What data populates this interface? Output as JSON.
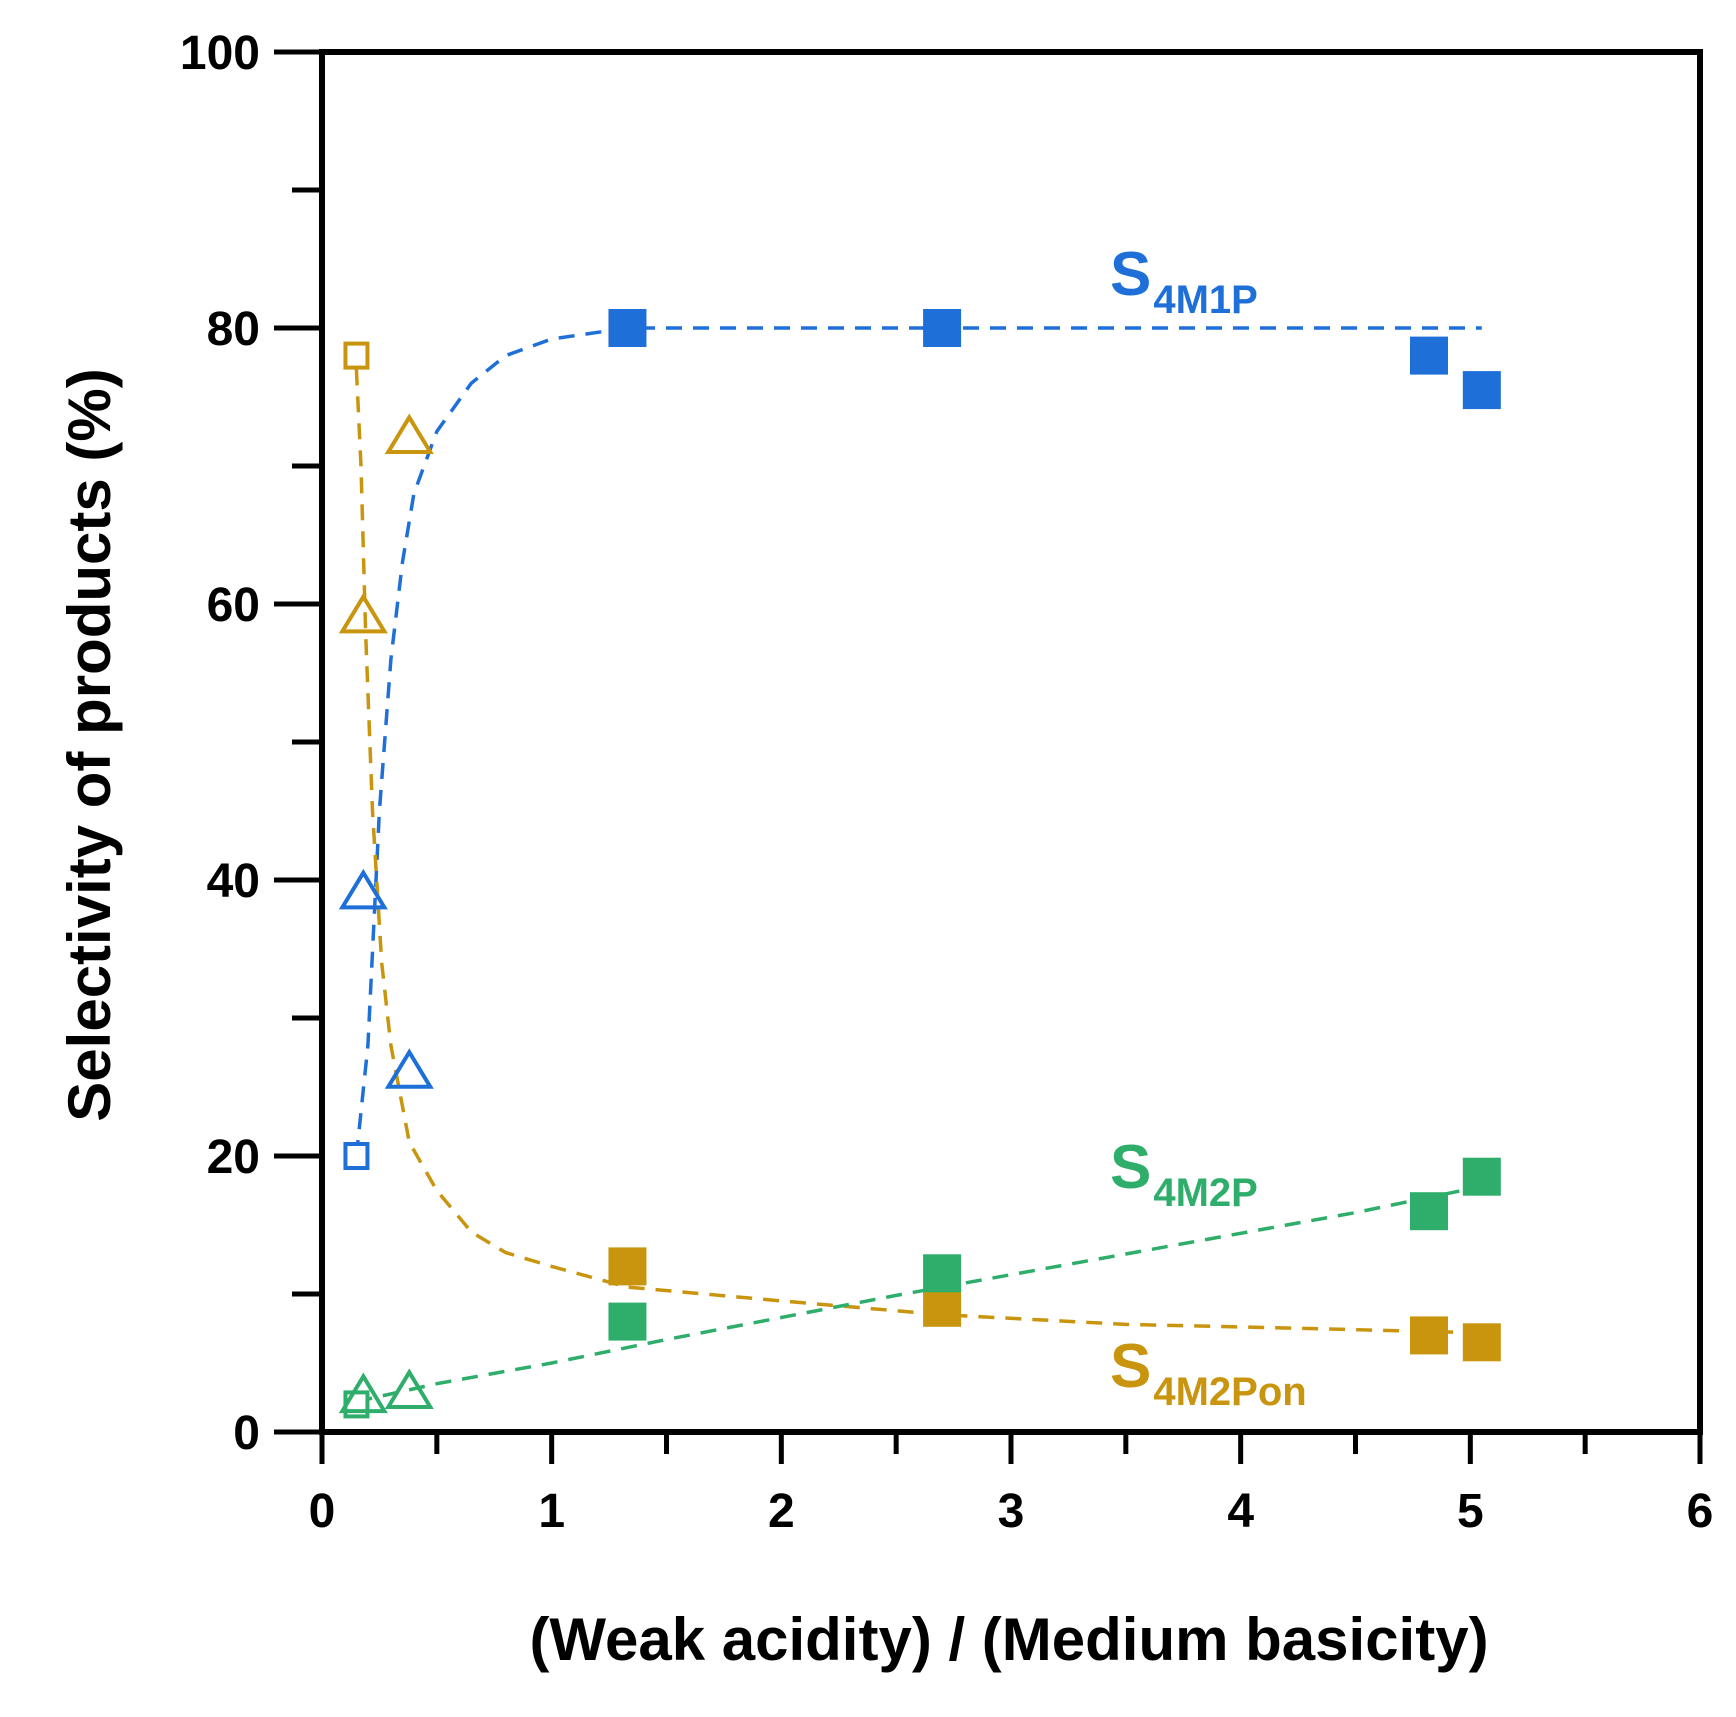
{
  "chart_data": {
    "type": "scatter",
    "title": "",
    "xlabel": "(Weak acidity) / (Medium basicity)",
    "ylabel": "Selectivity of products (%)",
    "xlim": [
      0,
      6
    ],
    "ylim": [
      0,
      100
    ],
    "x_ticks": [
      0,
      1,
      2,
      3,
      4,
      5,
      6
    ],
    "y_ticks": [
      0,
      20,
      40,
      60,
      80,
      100
    ],
    "x_tick_labels": [
      "0",
      "1",
      "2",
      "3",
      "4",
      "5",
      "6"
    ],
    "y_tick_labels": [
      "0",
      "20",
      "40",
      "60",
      "80",
      "100"
    ],
    "grid": false,
    "legend": "none",
    "series": [
      {
        "key": "s4m1p",
        "label_main": "S",
        "label_sub": "4M1P",
        "color": "#1f6fd8",
        "points": [
          {
            "x": 0.15,
            "y": 20,
            "marker": "square-open-small"
          },
          {
            "x": 0.18,
            "y": 39,
            "marker": "triangle-open"
          },
          {
            "x": 0.38,
            "y": 26,
            "marker": "triangle-open"
          },
          {
            "x": 1.33,
            "y": 80,
            "marker": "square-filled"
          },
          {
            "x": 2.7,
            "y": 80,
            "marker": "square-filled"
          },
          {
            "x": 4.82,
            "y": 78,
            "marker": "square-filled"
          },
          {
            "x": 5.05,
            "y": 75.5,
            "marker": "square-filled"
          }
        ],
        "trend": [
          [
            0.15,
            20
          ],
          [
            0.2,
            28
          ],
          [
            0.25,
            45
          ],
          [
            0.3,
            56
          ],
          [
            0.35,
            63
          ],
          [
            0.4,
            68
          ],
          [
            0.5,
            72.5
          ],
          [
            0.65,
            76
          ],
          [
            0.8,
            78
          ],
          [
            1.0,
            79.2
          ],
          [
            1.33,
            80
          ],
          [
            2.7,
            80
          ],
          [
            5.05,
            80
          ]
        ]
      },
      {
        "key": "s4m2pon",
        "label_main": "S",
        "label_sub": "4M2Pon",
        "color": "#c9950f",
        "points": [
          {
            "x": 0.15,
            "y": 78,
            "marker": "square-open-small"
          },
          {
            "x": 0.18,
            "y": 59,
            "marker": "triangle-open"
          },
          {
            "x": 0.38,
            "y": 72,
            "marker": "triangle-open"
          },
          {
            "x": 1.33,
            "y": 12,
            "marker": "square-filled"
          },
          {
            "x": 2.7,
            "y": 9,
            "marker": "square-filled"
          },
          {
            "x": 4.82,
            "y": 7,
            "marker": "square-filled"
          },
          {
            "x": 5.05,
            "y": 6.5,
            "marker": "square-filled"
          }
        ],
        "trend": [
          [
            0.15,
            77
          ],
          [
            0.17,
            70
          ],
          [
            0.19,
            58
          ],
          [
            0.22,
            45
          ],
          [
            0.26,
            34
          ],
          [
            0.3,
            28
          ],
          [
            0.38,
            21
          ],
          [
            0.5,
            17.5
          ],
          [
            0.65,
            14.5
          ],
          [
            0.8,
            13
          ],
          [
            1.0,
            12
          ],
          [
            1.33,
            10.5
          ],
          [
            2.0,
            9.5
          ],
          [
            2.7,
            8.5
          ],
          [
            3.5,
            7.8
          ],
          [
            4.3,
            7.5
          ],
          [
            5.0,
            7.2
          ]
        ]
      },
      {
        "key": "s4m2p",
        "label_main": "S",
        "label_sub": "4M2P",
        "color": "#2fae6b",
        "points": [
          {
            "x": 0.15,
            "y": 2,
            "marker": "square-open-small"
          },
          {
            "x": 0.18,
            "y": 2.5,
            "marker": "triangle-open"
          },
          {
            "x": 0.38,
            "y": 2.8,
            "marker": "triangle-open"
          },
          {
            "x": 1.33,
            "y": 8,
            "marker": "square-filled"
          },
          {
            "x": 2.7,
            "y": 11.5,
            "marker": "square-filled"
          },
          {
            "x": 4.82,
            "y": 16,
            "marker": "square-filled"
          },
          {
            "x": 5.05,
            "y": 18.5,
            "marker": "square-filled"
          }
        ],
        "trend": [
          [
            0.15,
            2.2
          ],
          [
            0.5,
            3.5
          ],
          [
            1.0,
            5.0
          ],
          [
            1.5,
            6.7
          ],
          [
            2.0,
            8.3
          ],
          [
            2.5,
            9.9
          ],
          [
            3.0,
            11.4
          ],
          [
            3.5,
            12.9
          ],
          [
            4.0,
            14.4
          ],
          [
            4.5,
            15.9
          ],
          [
            5.05,
            17.8
          ]
        ]
      }
    ]
  }
}
